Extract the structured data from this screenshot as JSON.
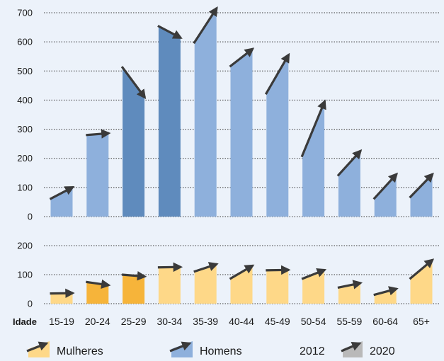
{
  "chart_data": [
    {
      "type": "bar",
      "panel": "top",
      "series_label": "Homens",
      "categories": [
        "15-19",
        "20-24",
        "25-29",
        "30-34",
        "35-39",
        "40-44",
        "45-49",
        "50-54",
        "55-59",
        "60-64",
        "65+"
      ],
      "values_2012": [
        60,
        280,
        515,
        655,
        595,
        515,
        420,
        205,
        140,
        60,
        65
      ],
      "values_2020": [
        105,
        290,
        405,
        610,
        720,
        580,
        560,
        400,
        230,
        150,
        150
      ],
      "ylim": [
        0,
        700
      ],
      "yticks": [
        "0",
        "100",
        "200",
        "300",
        "400",
        "500",
        "600",
        "700"
      ],
      "ytick_values": [
        0,
        100,
        200,
        300,
        400,
        500,
        600,
        700
      ],
      "colors": [
        "#8eb0dc",
        "#8eb0dc",
        "#5f8bbd",
        "#5f8bbd",
        "#8eb0dc",
        "#8eb0dc",
        "#8eb0dc",
        "#8eb0dc",
        "#8eb0dc",
        "#8eb0dc",
        "#8eb0dc"
      ],
      "grid": true
    },
    {
      "type": "bar",
      "panel": "bottom",
      "series_label": "Mulheres",
      "categories": [
        "15-19",
        "20-24",
        "25-29",
        "30-34",
        "35-39",
        "40-44",
        "45-49",
        "50-54",
        "55-59",
        "60-64",
        "65+"
      ],
      "values_2012": [
        35,
        75,
        100,
        125,
        110,
        85,
        115,
        85,
        55,
        30,
        85
      ],
      "values_2020": [
        40,
        60,
        90,
        130,
        140,
        135,
        120,
        120,
        75,
        55,
        155
      ],
      "ylim": [
        0,
        200
      ],
      "yticks": [
        "0",
        "100",
        "200"
      ],
      "ytick_values": [
        0,
        100,
        200
      ],
      "colors": [
        "#fed888",
        "#f6b43a",
        "#f6b43a",
        "#fed888",
        "#fed888",
        "#fed888",
        "#fed888",
        "#fed888",
        "#fed888",
        "#fed888",
        "#fed888"
      ],
      "grid": true
    }
  ],
  "x_axis_label": "Idade",
  "legend": {
    "mulheres": "Mulheres",
    "homens": "Homens",
    "year_start": "2012",
    "year_end": "2020",
    "mulheres_color": "#fed888",
    "homens_color": "#8eb0dc",
    "neutral_color": "#b9b9b9"
  },
  "colors": {
    "arrow": "#3a3a3a",
    "background": "#ecf2fa"
  }
}
